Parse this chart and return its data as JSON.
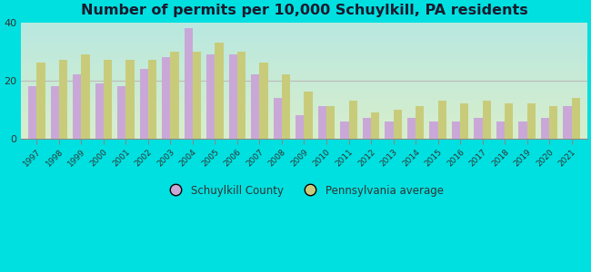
{
  "title": "Number of permits per 10,000 Schuylkill, PA residents",
  "years": [
    1997,
    1998,
    1999,
    2000,
    2001,
    2002,
    2003,
    2004,
    2005,
    2006,
    2007,
    2008,
    2009,
    2010,
    2011,
    2012,
    2013,
    2014,
    2015,
    2016,
    2017,
    2018,
    2019,
    2020,
    2021
  ],
  "schuylkill": [
    18,
    18,
    22,
    19,
    18,
    24,
    28,
    38,
    29,
    29,
    22,
    14,
    8,
    11,
    6,
    7,
    6,
    7,
    6,
    6,
    7,
    6,
    6,
    7,
    11
  ],
  "pa_average": [
    26,
    27,
    29,
    27,
    27,
    27,
    30,
    30,
    33,
    30,
    26,
    22,
    16,
    11,
    13,
    9,
    10,
    11,
    13,
    12,
    13,
    12,
    12,
    11,
    14
  ],
  "schuylkill_color": "#c9a8d8",
  "pa_color": "#c8cc7a",
  "background_outer": "#00e0e0",
  "background_plot_bottom": "#d8eecc",
  "background_plot_top": "#c0e8e8",
  "ylim": [
    0,
    40
  ],
  "yticks": [
    0,
    20,
    40
  ],
  "bar_width": 0.38,
  "legend_labels": [
    "Schuylkill County",
    "Pennsylvania average"
  ],
  "title_fontsize": 11.5,
  "tick_fontsize": 6.5
}
